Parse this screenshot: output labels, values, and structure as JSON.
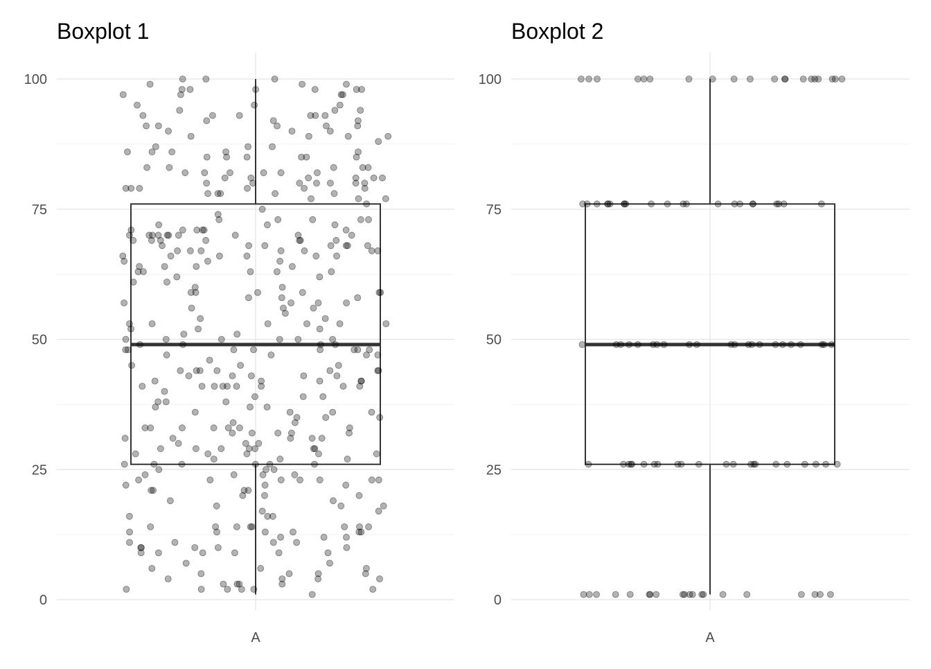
{
  "chart_data": [
    {
      "type": "boxplot",
      "title": "Boxplot 1",
      "categories": [
        "A"
      ],
      "ylim": [
        0,
        100
      ],
      "yticks": [
        0,
        25,
        50,
        75,
        100
      ],
      "grid": true,
      "box": {
        "whisker_low": 1,
        "q1": 26,
        "median": 49,
        "q3": 76,
        "whisker_high": 100
      },
      "points": {
        "description": "jittered raw observations, approx. uniform 1-100",
        "count": 400,
        "min": 1,
        "max": 100,
        "style": "semi-transparent grey dots"
      }
    },
    {
      "type": "boxplot",
      "title": "Boxplot 2",
      "categories": [
        "A"
      ],
      "ylim": [
        0,
        100
      ],
      "yticks": [
        0,
        25,
        50,
        75,
        100
      ],
      "grid": true,
      "box": {
        "whisker_low": 1,
        "q1": 26,
        "median": 49,
        "q3": 76,
        "whisker_high": 100
      },
      "points": {
        "description": "jittered raw observations at discrete levels",
        "levels": [
          {
            "y": 1,
            "count": 20
          },
          {
            "y": 26,
            "count": 22
          },
          {
            "y": 49,
            "count": 22
          },
          {
            "y": 76,
            "count": 22
          },
          {
            "y": 100,
            "count": 20
          }
        ],
        "style": "semi-transparent grey dots"
      }
    }
  ]
}
